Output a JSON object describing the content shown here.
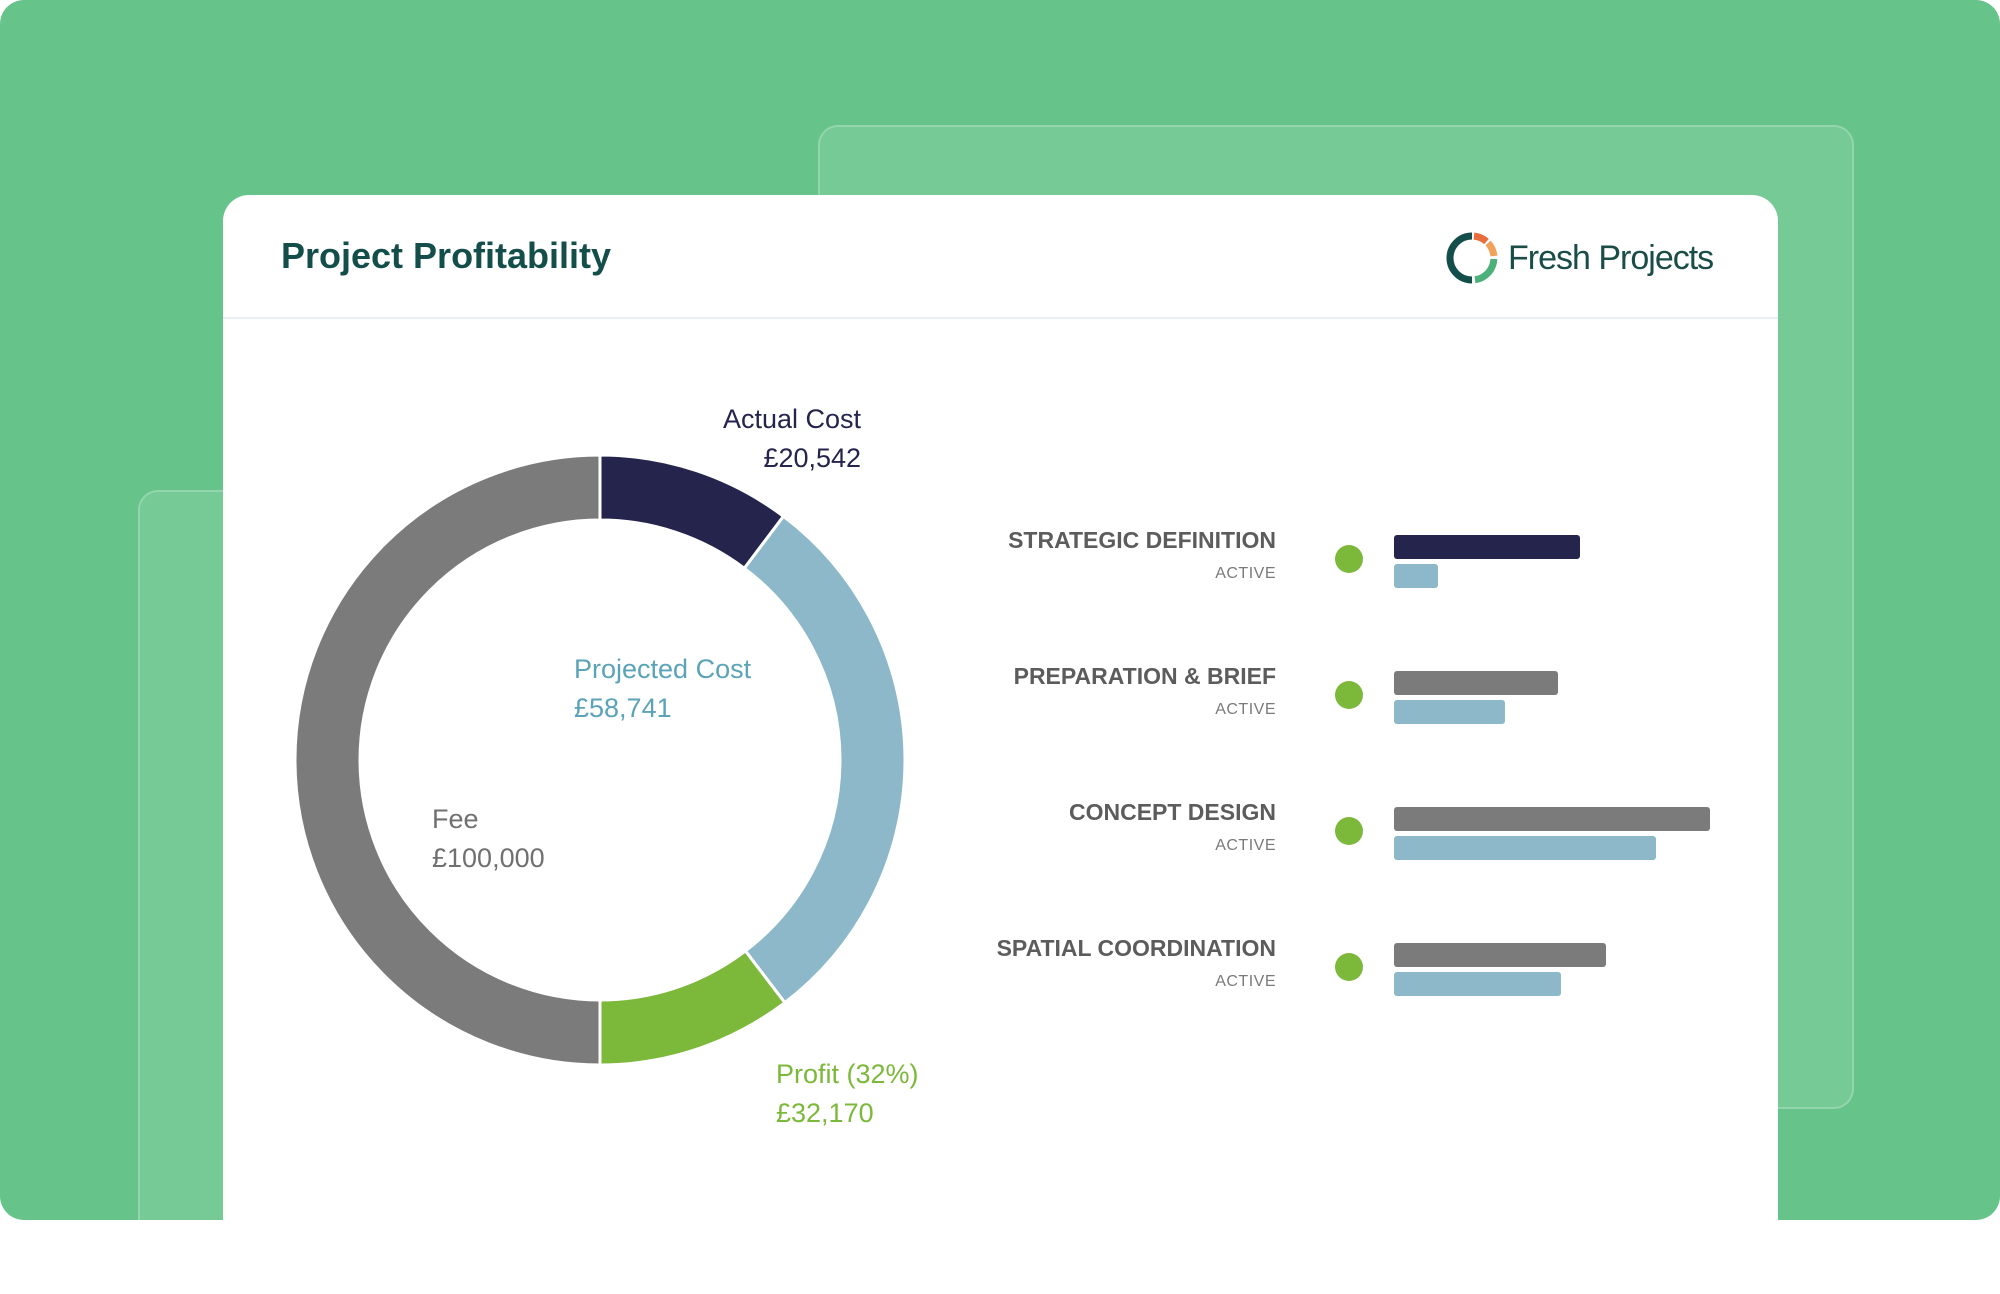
{
  "header": {
    "title": "Project Profitability",
    "logo_text": "Fresh Projects"
  },
  "chart_data": [
    {
      "type": "pie",
      "donut": true,
      "slices": [
        {
          "label": "Actual Cost",
          "value_text": "£20,542",
          "value": 20542,
          "color": "#25244d"
        },
        {
          "label": "Projected Cost",
          "value_text": "£58,741",
          "value": 58741,
          "color": "#8cb8c9"
        },
        {
          "label": "Profit (32%)",
          "value_text": "£32,170",
          "value": 32170,
          "color": "#7cb83a"
        },
        {
          "label": "Fee",
          "value_text": "£100,000",
          "value": 100000,
          "color": "#7b7b7b"
        }
      ],
      "label_colors": {
        "Actual Cost": "#25244d",
        "Projected Cost": "#5aa3b8",
        "Profit (32%)": "#7cb83a",
        "Fee": "#707070"
      }
    },
    {
      "type": "bar",
      "orientation": "horizontal",
      "categories": [
        "STRATEGIC DEFINITION",
        "PREPARATION & BRIEF",
        "CONCEPT DESIGN",
        "SPATIAL COORDINATION"
      ],
      "status": [
        "ACTIVE",
        "ACTIVE",
        "ACTIVE",
        "ACTIVE"
      ],
      "series": [
        {
          "values": [
            0.59,
            0.52,
            1.0,
            0.67
          ]
        },
        {
          "values": [
            0.14,
            0.35,
            0.83,
            0.53
          ]
        }
      ],
      "colors": {
        "primary_first": "#25244d",
        "primary": "#7b7b7b",
        "secondary": "#8cb8c9",
        "status_dot": "#7cb83a"
      }
    }
  ]
}
